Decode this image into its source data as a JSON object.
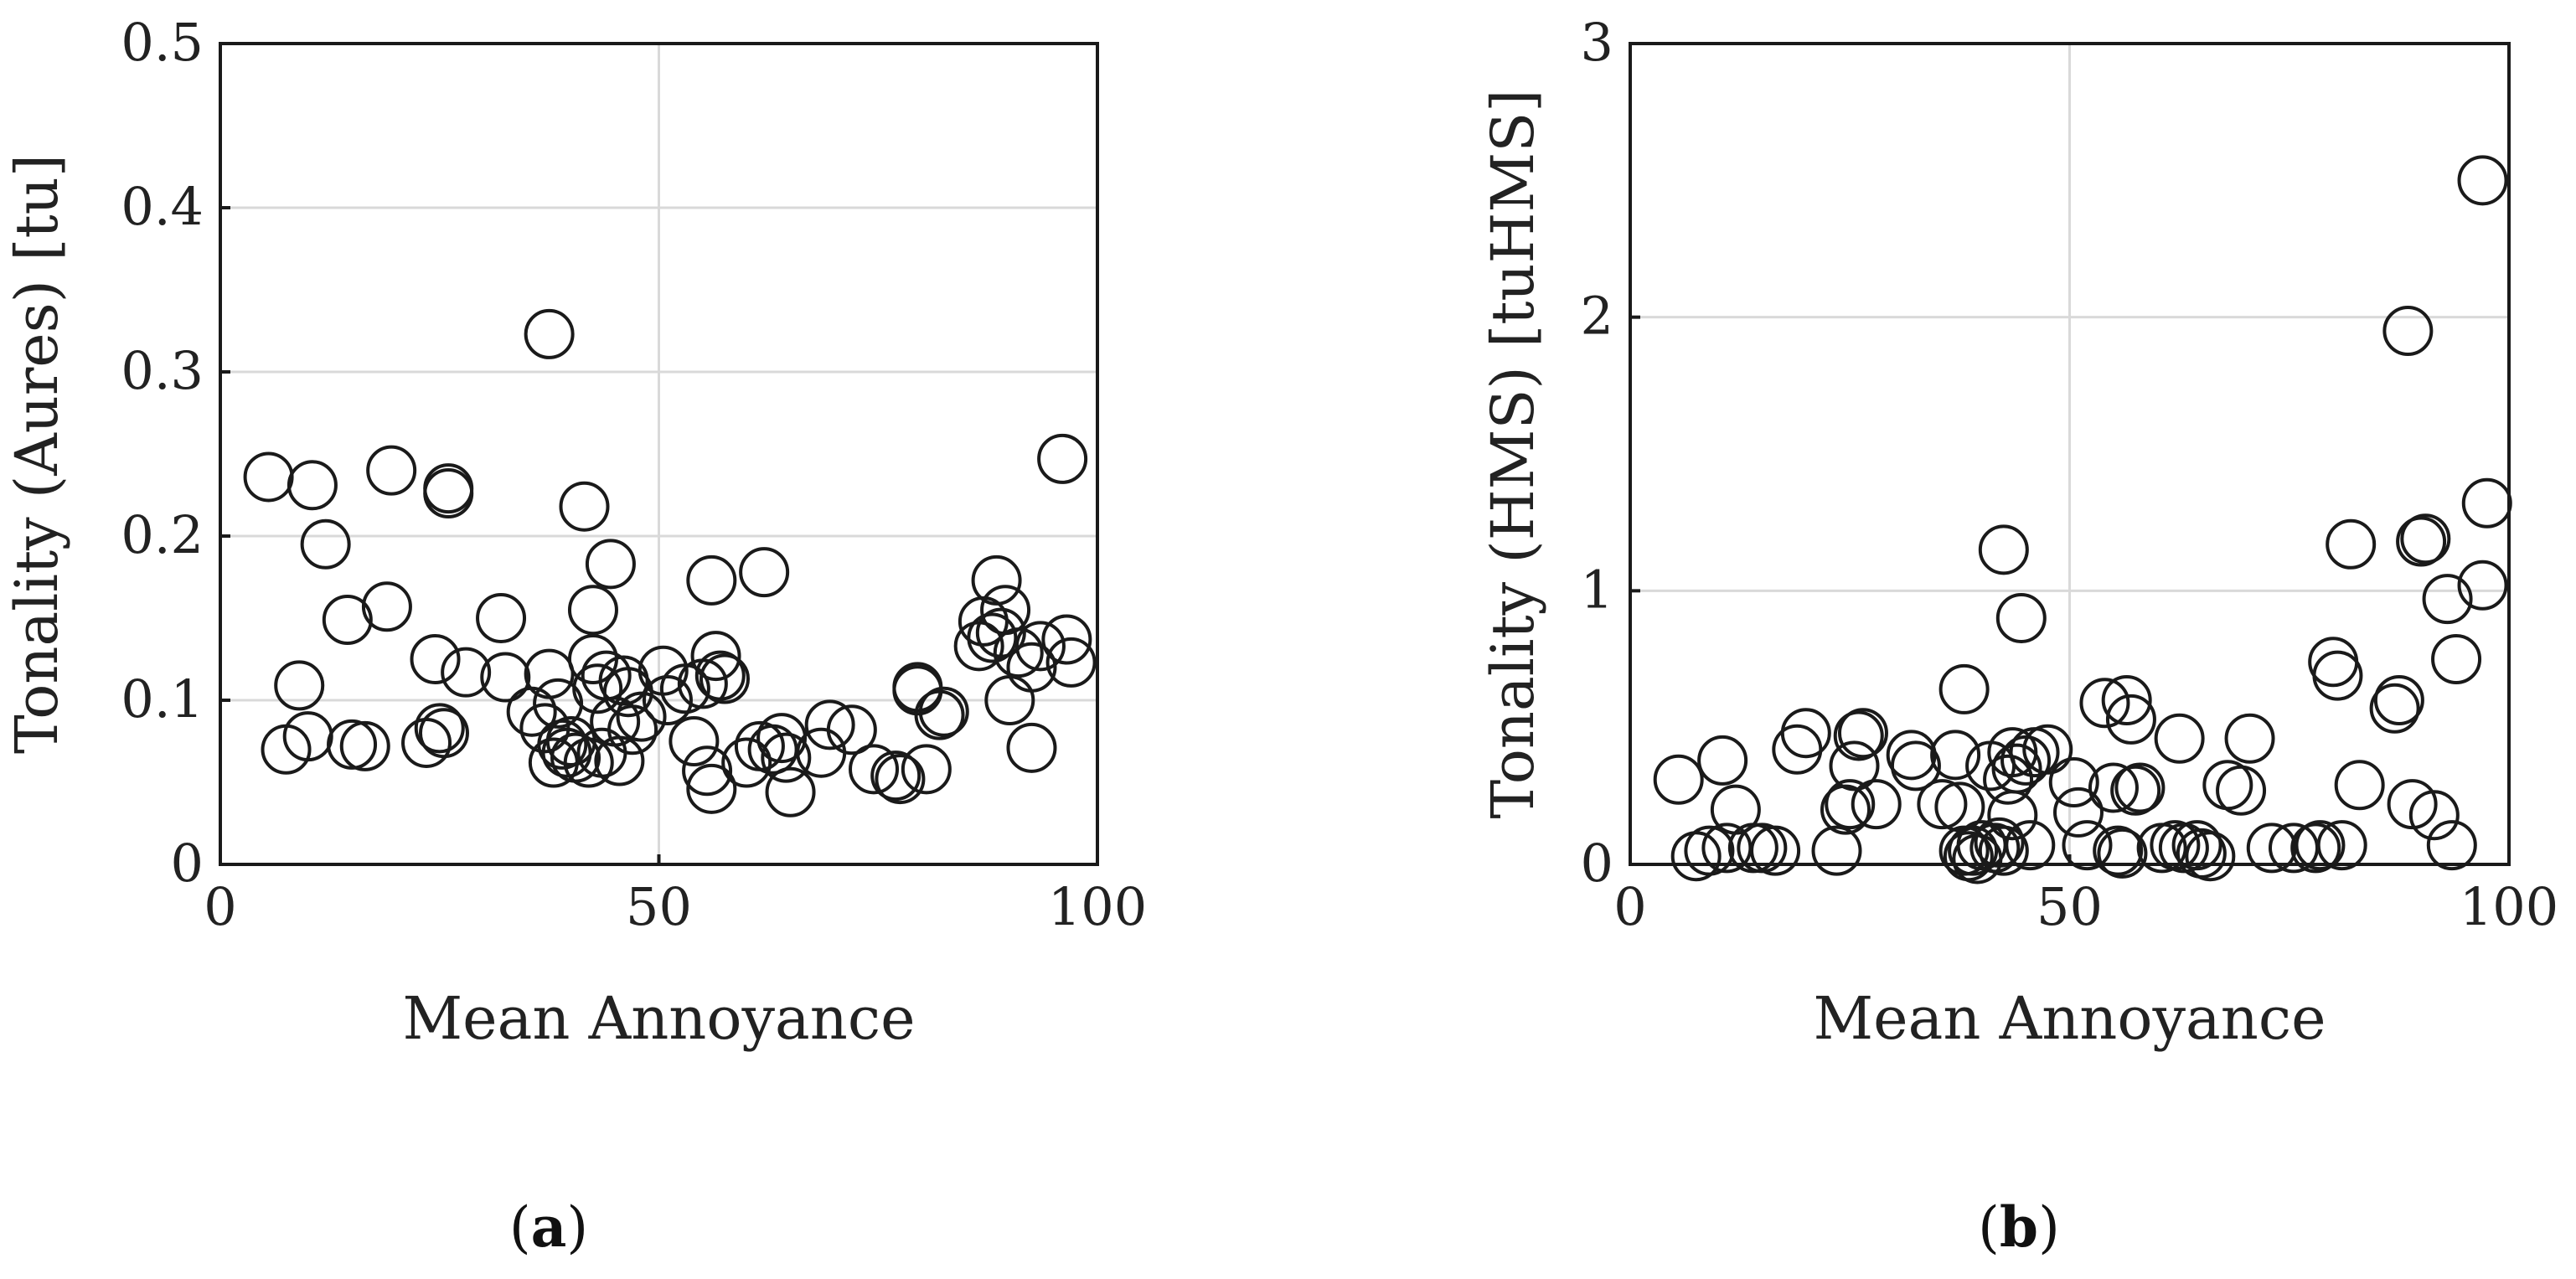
{
  "chart_data": [
    {
      "type": "scatter",
      "xlabel": "Mean Annoyance",
      "ylabel": "Tonality (Aures) [tu]",
      "xlim": [
        0,
        100
      ],
      "ylim": [
        0,
        0.5
      ],
      "xticks": [
        0,
        50,
        100
      ],
      "yticks": [
        0,
        0.1,
        0.2,
        0.3,
        0.4,
        0.5
      ],
      "xtick_labels": [
        "0",
        "50",
        "100"
      ],
      "ytick_labels": [
        "0",
        "0.1",
        "0.2",
        "0.3",
        "0.4",
        "0.5"
      ],
      "grid": true,
      "caption_letter": "a",
      "points": [
        [
          5.5,
          0.236
        ],
        [
          7.5,
          0.07
        ],
        [
          9.0,
          0.109
        ],
        [
          10.0,
          0.078
        ],
        [
          10.5,
          0.231
        ],
        [
          12.0,
          0.195
        ],
        [
          14.5,
          0.149
        ],
        [
          15.0,
          0.073
        ],
        [
          16.5,
          0.072
        ],
        [
          19.0,
          0.157
        ],
        [
          19.5,
          0.24
        ],
        [
          23.5,
          0.074
        ],
        [
          24.5,
          0.125
        ],
        [
          25.0,
          0.083
        ],
        [
          25.5,
          0.08
        ],
        [
          26.0,
          0.229
        ],
        [
          26.0,
          0.226
        ],
        [
          28.0,
          0.117
        ],
        [
          32.0,
          0.15
        ],
        [
          32.5,
          0.114
        ],
        [
          35.5,
          0.093
        ],
        [
          37.0,
          0.083
        ],
        [
          37.5,
          0.116
        ],
        [
          37.5,
          0.323
        ],
        [
          38.0,
          0.062
        ],
        [
          38.5,
          0.098
        ],
        [
          39.0,
          0.073
        ],
        [
          39.5,
          0.068
        ],
        [
          40.0,
          0.075
        ],
        [
          40.5,
          0.065
        ],
        [
          41.5,
          0.218
        ],
        [
          42.0,
          0.062
        ],
        [
          42.5,
          0.155
        ],
        [
          42.5,
          0.125
        ],
        [
          43.0,
          0.107
        ],
        [
          43.5,
          0.068
        ],
        [
          44.0,
          0.115
        ],
        [
          44.5,
          0.183
        ],
        [
          45.0,
          0.087
        ],
        [
          45.5,
          0.063
        ],
        [
          46.0,
          0.112
        ],
        [
          46.5,
          0.105
        ],
        [
          47.0,
          0.082
        ],
        [
          48.0,
          0.09
        ],
        [
          50.5,
          0.118
        ],
        [
          51.0,
          0.1
        ],
        [
          53.0,
          0.107
        ],
        [
          54.0,
          0.075
        ],
        [
          55.0,
          0.11
        ],
        [
          55.5,
          0.057
        ],
        [
          56.0,
          0.046
        ],
        [
          56.0,
          0.173
        ],
        [
          56.5,
          0.127
        ],
        [
          57.0,
          0.115
        ],
        [
          57.5,
          0.113
        ],
        [
          60.0,
          0.062
        ],
        [
          61.5,
          0.072
        ],
        [
          62.0,
          0.178
        ],
        [
          63.0,
          0.07
        ],
        [
          64.0,
          0.077
        ],
        [
          64.5,
          0.065
        ],
        [
          65.0,
          0.044
        ],
        [
          68.5,
          0.068
        ],
        [
          69.5,
          0.085
        ],
        [
          72.0,
          0.082
        ],
        [
          74.5,
          0.058
        ],
        [
          77.0,
          0.054
        ],
        [
          77.5,
          0.052
        ],
        [
          79.5,
          0.108
        ],
        [
          79.5,
          0.106
        ],
        [
          80.5,
          0.058
        ],
        [
          82.0,
          0.091
        ],
        [
          82.5,
          0.093
        ],
        [
          86.5,
          0.133
        ],
        [
          87.0,
          0.148
        ],
        [
          88.0,
          0.138
        ],
        [
          88.5,
          0.173
        ],
        [
          89.0,
          0.141
        ],
        [
          89.5,
          0.155
        ],
        [
          90.0,
          0.1
        ],
        [
          91.0,
          0.129
        ],
        [
          92.5,
          0.071
        ],
        [
          92.5,
          0.12
        ],
        [
          93.5,
          0.133
        ],
        [
          96.0,
          0.247
        ],
        [
          96.5,
          0.137
        ],
        [
          97.0,
          0.123
        ]
      ]
    },
    {
      "type": "scatter",
      "xlabel": "Mean Annoyance",
      "ylabel": "Tonality (HMS) [tuHMS]",
      "xlim": [
        0,
        100
      ],
      "ylim": [
        0,
        3
      ],
      "xticks": [
        0,
        50,
        100
      ],
      "yticks": [
        0,
        1,
        2,
        3
      ],
      "xtick_labels": [
        "0",
        "50",
        "100"
      ],
      "ytick_labels": [
        "0",
        "1",
        "2",
        "3"
      ],
      "grid": true,
      "caption_letter": "b",
      "points": [
        [
          5.5,
          0.31
        ],
        [
          7.5,
          0.03
        ],
        [
          9.0,
          0.05
        ],
        [
          10.5,
          0.38
        ],
        [
          11.0,
          0.06
        ],
        [
          12.0,
          0.2
        ],
        [
          14.0,
          0.06
        ],
        [
          15.0,
          0.06
        ],
        [
          16.5,
          0.05
        ],
        [
          19.0,
          0.42
        ],
        [
          20.0,
          0.48
        ],
        [
          23.5,
          0.05
        ],
        [
          24.5,
          0.2
        ],
        [
          25.0,
          0.22
        ],
        [
          25.5,
          0.36
        ],
        [
          26.0,
          0.47
        ],
        [
          26.5,
          0.48
        ],
        [
          28.0,
          0.22
        ],
        [
          32.0,
          0.4
        ],
        [
          32.5,
          0.36
        ],
        [
          35.5,
          0.22
        ],
        [
          37.0,
          0.4
        ],
        [
          37.5,
          0.21
        ],
        [
          38.0,
          0.64
        ],
        [
          38.0,
          0.05
        ],
        [
          38.5,
          0.03
        ],
        [
          39.0,
          0.05
        ],
        [
          39.5,
          0.02
        ],
        [
          40.0,
          0.07
        ],
        [
          41.0,
          0.36
        ],
        [
          41.5,
          0.06
        ],
        [
          42.0,
          0.08
        ],
        [
          42.5,
          0.05
        ],
        [
          42.5,
          1.15
        ],
        [
          43.0,
          0.31
        ],
        [
          43.5,
          0.18
        ],
        [
          43.5,
          0.41
        ],
        [
          44.0,
          0.35
        ],
        [
          44.5,
          0.9
        ],
        [
          45.0,
          0.38
        ],
        [
          45.5,
          0.07
        ],
        [
          46.0,
          0.41
        ],
        [
          47.5,
          0.42
        ],
        [
          50.5,
          0.3
        ],
        [
          51.0,
          0.19
        ],
        [
          52.0,
          0.07
        ],
        [
          54.0,
          0.59
        ],
        [
          55.0,
          0.28
        ],
        [
          55.5,
          0.05
        ],
        [
          56.0,
          0.04
        ],
        [
          56.5,
          0.6
        ],
        [
          57.0,
          0.53
        ],
        [
          57.5,
          0.27
        ],
        [
          58.0,
          0.28
        ],
        [
          60.5,
          0.06
        ],
        [
          62.0,
          0.07
        ],
        [
          62.5,
          0.46
        ],
        [
          63.0,
          0.06
        ],
        [
          64.5,
          0.07
        ],
        [
          65.0,
          0.04
        ],
        [
          66.0,
          0.03
        ],
        [
          68.0,
          0.29
        ],
        [
          69.5,
          0.27
        ],
        [
          70.5,
          0.46
        ],
        [
          73.0,
          0.06
        ],
        [
          75.5,
          0.06
        ],
        [
          78.0,
          0.06
        ],
        [
          78.5,
          0.07
        ],
        [
          80.0,
          0.74
        ],
        [
          80.5,
          0.69
        ],
        [
          81.0,
          0.07
        ],
        [
          82.0,
          1.17
        ],
        [
          83.0,
          0.29
        ],
        [
          87.0,
          0.57
        ],
        [
          87.5,
          0.6
        ],
        [
          88.5,
          1.95
        ],
        [
          89.0,
          0.22
        ],
        [
          90.0,
          1.18
        ],
        [
          90.5,
          1.19
        ],
        [
          91.5,
          0.18
        ],
        [
          93.0,
          0.97
        ],
        [
          93.5,
          0.07
        ],
        [
          94.0,
          0.75
        ],
        [
          97.0,
          1.02
        ],
        [
          97.5,
          1.32
        ],
        [
          97.0,
          2.5
        ]
      ]
    }
  ],
  "captions": [
    {
      "open": "(",
      "letter": "a",
      "close": ")"
    },
    {
      "open": "(",
      "letter": "b",
      "close": ")"
    }
  ]
}
